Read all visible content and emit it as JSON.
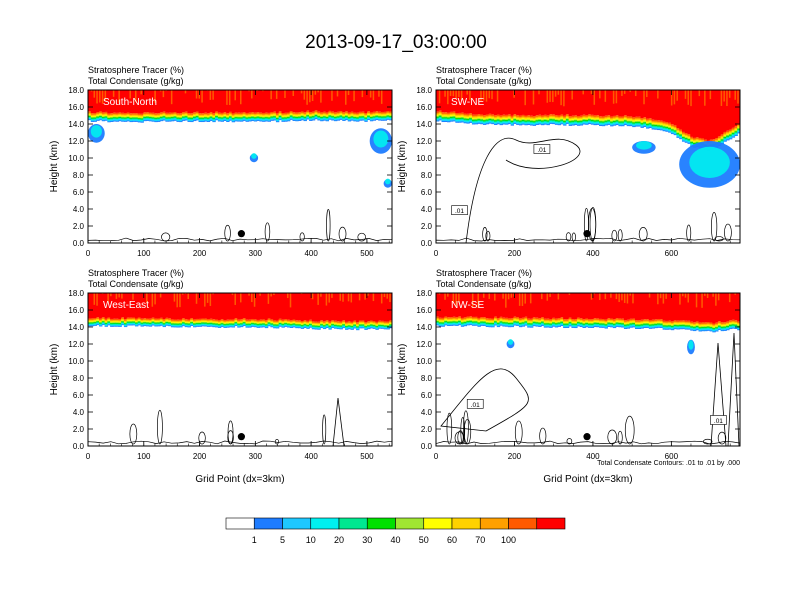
{
  "title": "2013-09-17_03:00:00",
  "colors": {
    "sky": "#ffffff",
    "contour": "#000000",
    "station_marker": "#000000"
  },
  "colorbar": {
    "colors": [
      "#ffffff",
      "#1e7cff",
      "#1ec8ff",
      "#00f0f0",
      "#00e890",
      "#00e000",
      "#a0e632",
      "#ffff00",
      "#ffd200",
      "#ffa000",
      "#ff5a00",
      "#ff0000"
    ],
    "labels": [
      "1",
      "5",
      "10",
      "20",
      "30",
      "40",
      "50",
      "60",
      "70",
      "100"
    ]
  },
  "chart_data": [
    {
      "type": "heatmap",
      "panel": "top-left",
      "title_line1": "Stratosphere Tracer   (%)",
      "title_line2": "Total Condensate   (g/kg)",
      "label": "South-North",
      "ylabel": "Height (km)",
      "xlabel": "",
      "ylim": [
        0,
        18
      ],
      "yticks": [
        "0.0",
        "2.0",
        "4.0",
        "6.0",
        "8.0",
        "10.0",
        "12.0",
        "14.0",
        "16.0",
        "18.0"
      ],
      "xlim": [
        0,
        545
      ],
      "xticks": [
        0,
        100,
        200,
        300,
        400,
        500
      ],
      "tropopause_km": [
        [
          0,
          14.9
        ],
        [
          100,
          14.8
        ],
        [
          200,
          14.9
        ],
        [
          300,
          14.8
        ],
        [
          400,
          15.0
        ],
        [
          500,
          14.9
        ],
        [
          545,
          15.0
        ]
      ],
      "band_width_km": 0.9,
      "top_red_km": 16.2,
      "station_marker": {
        "x": 275,
        "height_km": 1.1
      },
      "blue_patches": [
        {
          "x": [
            0,
            30
          ],
          "h": [
            11.8,
            14.0
          ]
        },
        {
          "x": [
            290,
            305
          ],
          "h": [
            9.5,
            10.5
          ]
        },
        {
          "x": [
            505,
            545
          ],
          "h": [
            10.5,
            13.5
          ]
        },
        {
          "x": [
            530,
            545
          ],
          "h": [
            6.5,
            7.5
          ]
        }
      ],
      "contour_labels": []
    },
    {
      "type": "heatmap",
      "panel": "top-right",
      "title_line1": "Stratosphere Tracer   (%)",
      "title_line2": "Total Condensate   (g/kg)",
      "label": "SW-NE",
      "ylabel": "Height (km)",
      "xlabel": "",
      "ylim": [
        0,
        18
      ],
      "yticks": [
        "0.0",
        "2.0",
        "4.0",
        "6.0",
        "8.0",
        "10.0",
        "12.0",
        "14.0",
        "16.0",
        "18.0"
      ],
      "xlim": [
        0,
        775
      ],
      "xticks": [
        0,
        200,
        400,
        600
      ],
      "tropopause_km": [
        [
          0,
          15.0
        ],
        [
          100,
          14.6
        ],
        [
          200,
          14.5
        ],
        [
          400,
          14.5
        ],
        [
          520,
          14.3
        ],
        [
          600,
          13.5
        ],
        [
          650,
          12.0
        ],
        [
          700,
          11.5
        ],
        [
          775,
          13.5
        ]
      ],
      "band_width_km": 1.0,
      "top_red_km": 16.0,
      "station_marker": {
        "x": 385,
        "height_km": 1.1
      },
      "blue_patches": [
        {
          "x": [
            500,
            560
          ],
          "h": [
            10.5,
            12.0
          ]
        },
        {
          "x": [
            620,
            775
          ],
          "h": [
            6.5,
            12.0
          ]
        }
      ],
      "contour_labels": [
        {
          "x": 270,
          "height_km": 11.0,
          "text": ".01"
        },
        {
          "x": 60,
          "height_km": 3.8,
          "text": ".01"
        }
      ]
    },
    {
      "type": "heatmap",
      "panel": "bottom-left",
      "title_line1": "Stratosphere Tracer   (%)",
      "title_line2": "Total Condensate   (g/kg)",
      "label": "West-East",
      "ylabel": "Height (km)",
      "xlabel": "Grid Point (dx=3km)",
      "ylim": [
        0,
        18
      ],
      "yticks": [
        "0.0",
        "2.0",
        "4.0",
        "6.0",
        "8.0",
        "10.0",
        "12.0",
        "14.0",
        "16.0",
        "18.0"
      ],
      "xlim": [
        0,
        545
      ],
      "xticks": [
        0,
        100,
        200,
        300,
        400,
        500
      ],
      "tropopause_km": [
        [
          0,
          14.6
        ],
        [
          100,
          14.6
        ],
        [
          200,
          14.5
        ],
        [
          300,
          14.5
        ],
        [
          400,
          14.3
        ],
        [
          500,
          14.2
        ],
        [
          545,
          14.3
        ]
      ],
      "band_width_km": 0.8,
      "top_red_km": 16.3,
      "station_marker": {
        "x": 275,
        "height_km": 1.1
      },
      "blue_patches": [],
      "contour_labels": []
    },
    {
      "type": "heatmap",
      "panel": "bottom-right",
      "title_line1": "Stratosphere Tracer   (%)",
      "title_line2": "Total Condensate   (g/kg)",
      "label": "NW-SE",
      "ylabel": "Height (km)",
      "xlabel": "Grid Point (dx=3km)",
      "ylim": [
        0,
        18
      ],
      "yticks": [
        "0.0",
        "2.0",
        "4.0",
        "6.0",
        "8.0",
        "10.0",
        "12.0",
        "14.0",
        "16.0",
        "18.0"
      ],
      "xlim": [
        0,
        775
      ],
      "xticks": [
        0,
        200,
        400,
        600
      ],
      "tropopause_km": [
        [
          0,
          14.7
        ],
        [
          200,
          14.6
        ],
        [
          400,
          14.5
        ],
        [
          600,
          14.3
        ],
        [
          700,
          14.0
        ],
        [
          775,
          14.3
        ]
      ],
      "band_width_km": 0.9,
      "top_red_km": 16.2,
      "station_marker": {
        "x": 385,
        "height_km": 1.1
      },
      "blue_patches": [
        {
          "x": [
            180,
            200
          ],
          "h": [
            11.5,
            12.5
          ]
        },
        {
          "x": [
            640,
            660
          ],
          "h": [
            10.8,
            12.5
          ]
        }
      ],
      "contour_labels": [
        {
          "x": 100,
          "height_km": 4.9,
          "text": ".01"
        },
        {
          "x": 720,
          "height_km": 3.0,
          "text": ".01"
        }
      ],
      "footnote": "Total Condensate Contours: .01 to .01 by .000"
    }
  ]
}
